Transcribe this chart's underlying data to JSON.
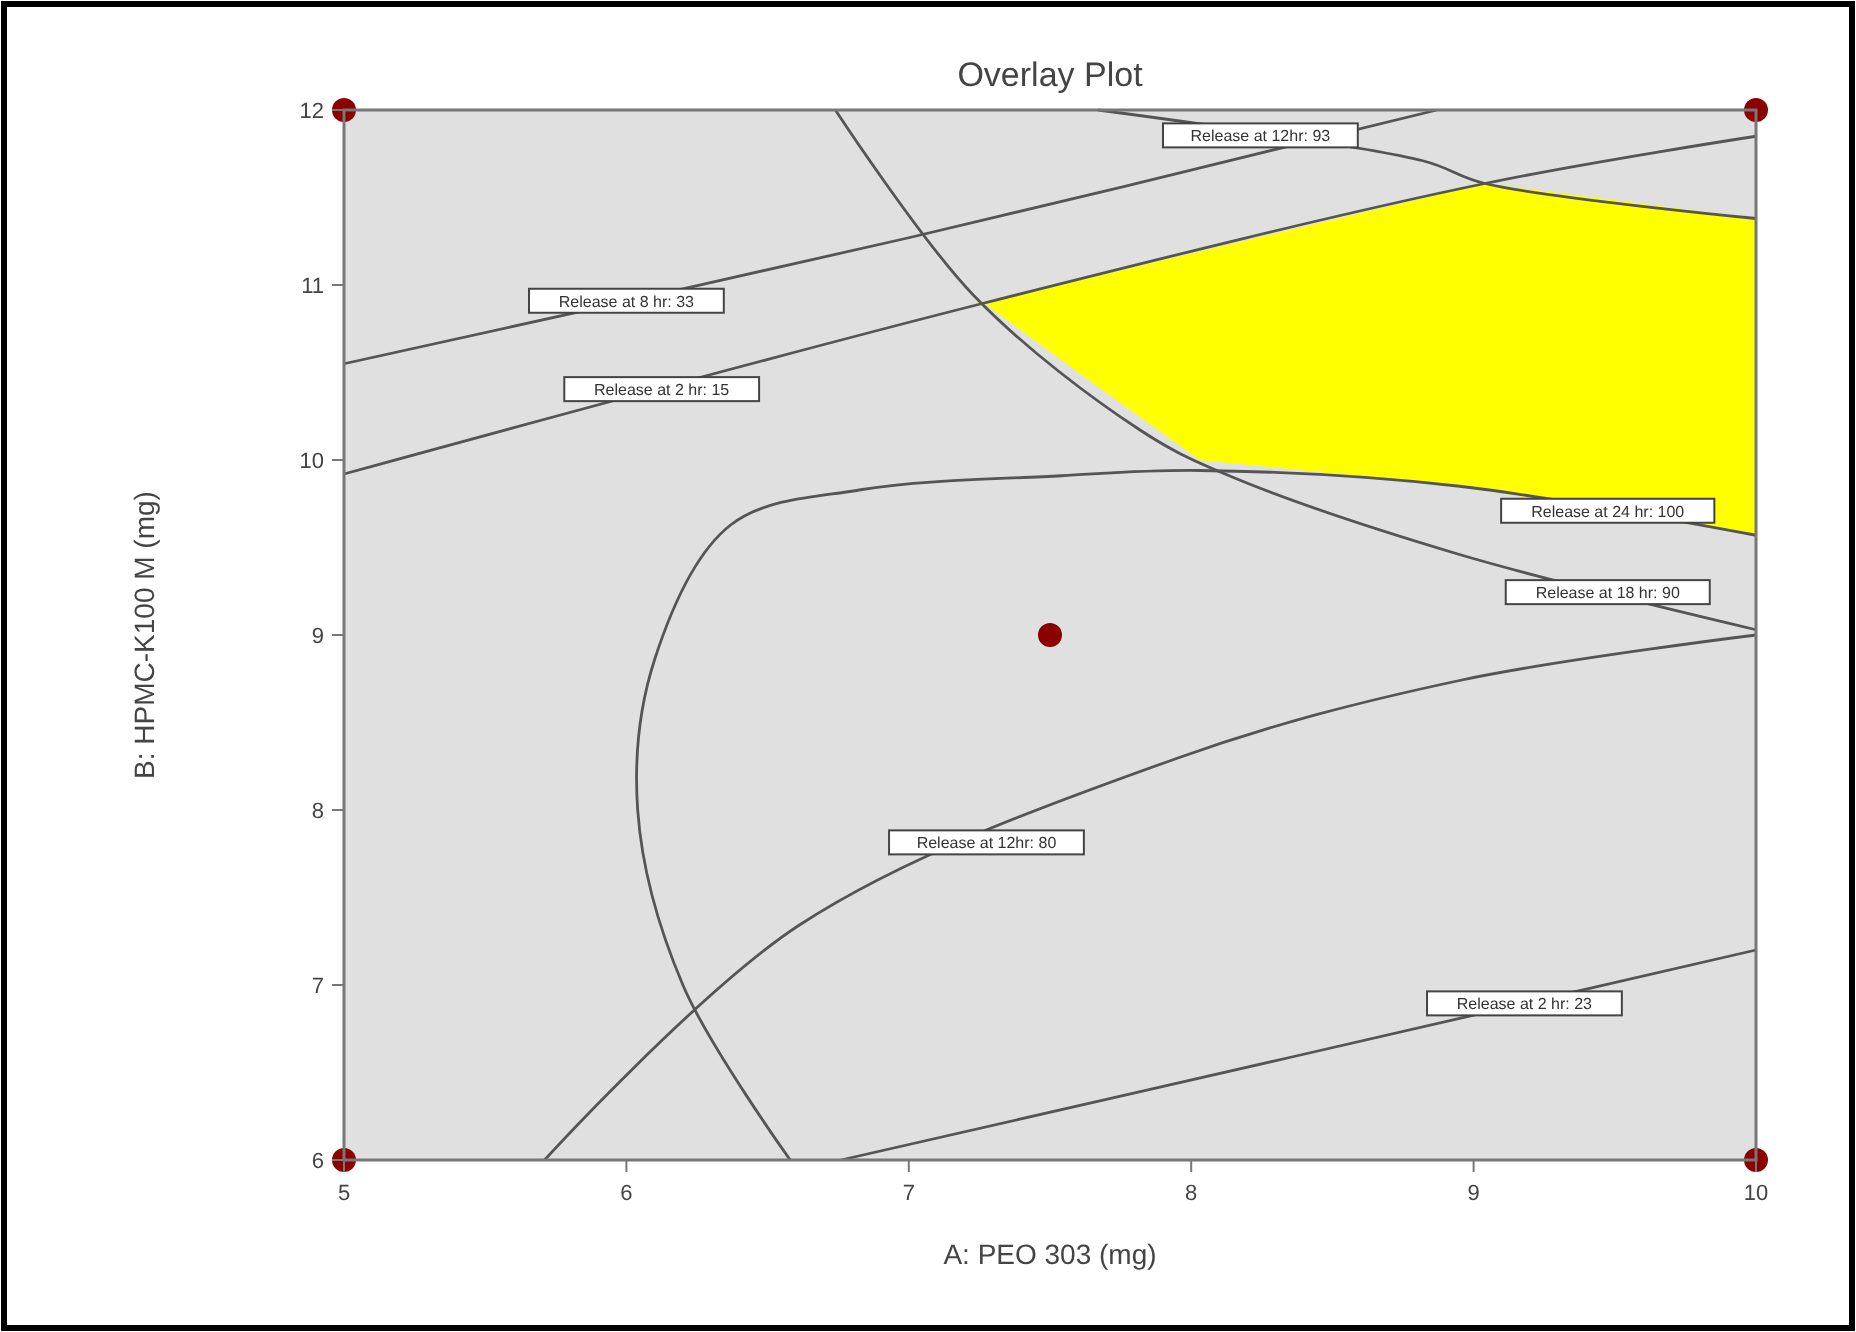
{
  "chart_data": {
    "type": "line",
    "title": "Overlay Plot",
    "xlabel": "A: PEO 303 (mg)",
    "ylabel": "B: HPMC-K100 M (mg)",
    "xlim": [
      5,
      10
    ],
    "ylim": [
      6,
      12
    ],
    "xticks": [
      5,
      6,
      7,
      8,
      9,
      10
    ],
    "yticks": [
      6,
      7,
      8,
      9,
      10,
      11,
      12
    ],
    "grid": false,
    "line_style": "solid",
    "series": [
      {
        "type": "area",
        "color": "#ffff00",
        "x": [
          7.23,
          7.6,
          8.03,
          8.95,
          10,
          10,
          9.04,
          8.0,
          7.25
        ],
        "values": [
          10.94,
          10.5,
          10.0,
          9.85,
          9.57,
          11.38,
          11.58,
          11.18,
          10.89
        ]
      },
      {
        "name": "Release at 8 hr: 33",
        "color": "#555555",
        "x": [
          5,
          7,
          8.87
        ],
        "values": [
          10.55,
          11.27,
          12
        ]
      },
      {
        "name": "Release at 2 hr: 15",
        "color": "#555555",
        "x": [
          5,
          7.25,
          9.04,
          10
        ],
        "values": [
          9.92,
          10.89,
          11.58,
          11.85
        ]
      },
      {
        "name": "Release at 12hr: 93",
        "color": "#555555",
        "x": [
          7.67,
          8.82,
          9.04,
          10
        ],
        "values": [
          12,
          11.71,
          11.58,
          11.38
        ]
      },
      {
        "name": "Release at 18 hr: 90",
        "color": "#555555",
        "x": [
          6.74,
          7.23,
          7.82,
          8.12,
          8.95,
          10
        ],
        "values": [
          12,
          10.94,
          10.17,
          9.92,
          9.46,
          9.03
        ]
      },
      {
        "name": "Release at 24 hr: 100",
        "color": "#555555",
        "x": [
          6.58,
          6.2,
          6.04,
          6.1,
          6.37,
          6.83,
          7.54,
          8.03,
          8.95,
          10
        ],
        "values": [
          6,
          7.0,
          8.0,
          8.86,
          9.63,
          9.83,
          9.91,
          9.94,
          9.85,
          9.57
        ]
      },
      {
        "name": "Release at 12hr: 80",
        "color": "#555555",
        "x": [
          5.71,
          6.61,
          7.94,
          8.95,
          10
        ],
        "values": [
          6,
          7.34,
          8.29,
          8.74,
          9.0
        ]
      },
      {
        "name": "Release at 2 hr: 23",
        "color": "#555555",
        "x": [
          6.76,
          8.36,
          10
        ],
        "values": [
          6,
          6.59,
          7.2
        ]
      },
      {
        "type": "scatter",
        "color": "#8b0000",
        "marker": "circle",
        "x": [
          5,
          10,
          5,
          10,
          7.5
        ],
        "values": [
          12,
          12,
          6,
          6,
          9
        ]
      }
    ]
  }
}
